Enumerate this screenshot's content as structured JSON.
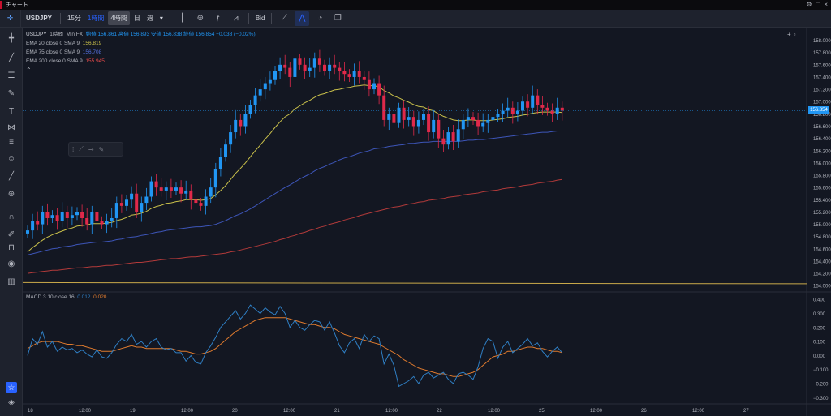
{
  "window": {
    "title": "チャート",
    "controls": [
      "⚙",
      "□",
      "×"
    ]
  },
  "toolbar": {
    "symbol": "USDJPY",
    "timeframes": [
      {
        "label": "15分",
        "state": "normal"
      },
      {
        "label": "1時間",
        "state": "active"
      },
      {
        "label": "4時間",
        "state": "selected"
      },
      {
        "label": "日",
        "state": "normal"
      },
      {
        "label": "週",
        "state": "normal"
      },
      {
        "label": "▾",
        "state": "normal"
      }
    ],
    "price_type": "Bid"
  },
  "legend": {
    "symbol": "USDJPY",
    "interval": "1時間",
    "source": "Min FX",
    "ohlc": "始値 156.861  高値 156.893  安値 156.838  終値 156.854  −0.038 (−0.02%)",
    "indicators": [
      {
        "label": "EMA 20 close 0 SMA 9",
        "value": "156.819",
        "color": "#c9c04a"
      },
      {
        "label": "EMA 75 close 0 SMA 9",
        "value": "156.708",
        "color": "#5471e0"
      },
      {
        "label": "EMA 200 close 0 SMA 9",
        "value": "155.945",
        "color": "#e64a4a"
      }
    ]
  },
  "macd": {
    "label": "MACD 3 10 close 16",
    "macd_value": "0.012",
    "signal_value": "0.020",
    "macd_color": "#2f7fc4",
    "signal_color": "#e07b2e"
  },
  "current_price": "156.854",
  "price_axis": [
    "158.000",
    "157.800",
    "157.600",
    "157.400",
    "157.200",
    "157.000",
    "156.800",
    "156.600",
    "156.400",
    "156.200",
    "156.000",
    "155.800",
    "155.600",
    "155.400",
    "155.200",
    "155.000",
    "154.800",
    "154.600",
    "154.400",
    "154.200",
    "154.000"
  ],
  "macd_axis": [
    "0.400",
    "0.300",
    "0.200",
    "0.100",
    "0.000",
    "−0.100",
    "−0.200",
    "−0.300"
  ],
  "time_axis": [
    "18",
    "12:00",
    "19",
    "12:00",
    "20",
    "12:00",
    "21",
    "12:00",
    "22",
    "12:00",
    "25",
    "12:00",
    "26",
    "12:00",
    "27"
  ],
  "colors": {
    "bg": "#131722",
    "up": "#2196f3",
    "down": "#e0294a",
    "ema20": "#c9c04a",
    "ema75": "#3d55b8",
    "ema200": "#b23a3a",
    "hline": "#c9a94a"
  },
  "icons": {
    "left_tools": [
      "crosshair-icon",
      "trendline-icon",
      "fib-icon",
      "brush-icon",
      "text-icon",
      "pattern-icon",
      "forecast-icon",
      "emoji-icon",
      "ruler-icon",
      "zoom-icon",
      "magnet-icon",
      "lock-draw-icon",
      "lock-icon",
      "eye-icon",
      "trash-icon"
    ],
    "bottom_left": [
      "star-icon",
      "layers-icon"
    ]
  },
  "chart_data": {
    "type": "candlestick",
    "price_range": [
      153.95,
      158.1
    ],
    "macd_range": [
      -0.31,
      0.43
    ],
    "candles_close": [
      154.9,
      155.05,
      155.0,
      155.2,
      155.1,
      155.15,
      155.05,
      155.2,
      155.1,
      155.15,
      155.2,
      155.1,
      155.0,
      155.2,
      155.05,
      155.0,
      155.05,
      155.1,
      155.35,
      155.3,
      155.4,
      155.5,
      155.2,
      155.35,
      155.45,
      155.7,
      155.6,
      155.55,
      155.6,
      155.55,
      155.6,
      155.5,
      155.55,
      155.4,
      155.35,
      155.3,
      155.45,
      155.6,
      155.9,
      156.1,
      156.3,
      156.5,
      156.7,
      156.6,
      156.8,
      156.95,
      157.1,
      157.2,
      157.3,
      157.35,
      157.5,
      157.6,
      157.55,
      157.4,
      157.7,
      157.6,
      157.5,
      157.55,
      157.7,
      157.6,
      157.5,
      157.6,
      157.55,
      157.5,
      157.45,
      157.4,
      157.5,
      157.4,
      157.35,
      157.2,
      157.3,
      157.1,
      156.7,
      156.8,
      156.65,
      156.9,
      156.7,
      156.75,
      156.6,
      156.7,
      156.8,
      156.5,
      156.7,
      156.4,
      156.3,
      156.5,
      156.35,
      156.55,
      156.7,
      156.75,
      156.7,
      156.6,
      156.65,
      156.7,
      156.75,
      156.8,
      156.85,
      156.9,
      156.8,
      156.85,
      157.0,
      156.9,
      157.1,
      156.95,
      156.9,
      156.85,
      156.8,
      156.9,
      156.85
    ],
    "ema20": [
      154.55,
      154.62,
      154.68,
      154.74,
      154.79,
      154.83,
      154.86,
      154.89,
      154.92,
      154.94,
      154.97,
      154.98,
      154.99,
      155.01,
      155.01,
      155.01,
      155.02,
      155.03,
      155.06,
      155.08,
      155.11,
      155.15,
      155.16,
      155.18,
      155.21,
      155.26,
      155.29,
      155.31,
      155.34,
      155.35,
      155.37,
      155.38,
      155.4,
      155.4,
      155.4,
      155.39,
      155.4,
      155.42,
      155.48,
      155.55,
      155.63,
      155.73,
      155.83,
      155.91,
      156.0,
      156.1,
      156.2,
      156.29,
      156.39,
      156.48,
      156.58,
      156.67,
      156.75,
      156.8,
      156.88,
      156.93,
      156.98,
      157.02,
      157.07,
      157.11,
      157.13,
      157.16,
      157.19,
      157.2,
      157.22,
      157.23,
      157.25,
      157.26,
      157.27,
      157.26,
      157.26,
      157.24,
      157.18,
      157.14,
      157.09,
      157.06,
      157.02,
      156.99,
      156.95,
      156.92,
      156.91,
      156.87,
      156.85,
      156.8,
      156.76,
      156.73,
      156.7,
      156.69,
      156.69,
      156.7,
      156.7,
      156.69,
      156.69,
      156.69,
      156.7,
      156.71,
      156.72,
      156.74,
      156.75,
      156.76,
      156.78,
      156.79,
      156.81,
      156.82,
      156.83,
      156.83,
      156.83,
      156.83,
      156.82
    ],
    "ema75": [
      154.5,
      154.52,
      154.54,
      154.56,
      154.58,
      154.6,
      154.61,
      154.63,
      154.64,
      154.65,
      154.67,
      154.68,
      154.69,
      154.7,
      154.71,
      154.71,
      154.72,
      154.73,
      154.75,
      154.76,
      154.78,
      154.79,
      154.8,
      154.82,
      154.83,
      154.85,
      154.87,
      154.88,
      154.9,
      154.91,
      154.92,
      154.93,
      154.94,
      154.95,
      154.96,
      154.96,
      154.97,
      154.98,
      155.0,
      155.03,
      155.06,
      155.1,
      155.14,
      155.17,
      155.21,
      155.25,
      155.3,
      155.35,
      155.4,
      155.45,
      155.5,
      155.55,
      155.6,
      155.64,
      155.69,
      155.74,
      155.78,
      155.82,
      155.87,
      155.91,
      155.94,
      155.98,
      156.01,
      156.05,
      156.08,
      156.1,
      156.13,
      156.16,
      156.18,
      156.2,
      156.23,
      156.24,
      156.25,
      156.27,
      156.28,
      156.29,
      156.3,
      156.32,
      156.32,
      156.33,
      156.34,
      156.34,
      156.35,
      156.35,
      156.35,
      156.35,
      156.35,
      156.35,
      156.36,
      156.37,
      156.37,
      156.38,
      156.38,
      156.39,
      156.4,
      156.41,
      156.42,
      156.43,
      156.44,
      156.45,
      156.46,
      156.47,
      156.48,
      156.49,
      156.5,
      156.5,
      156.51,
      156.52,
      156.52
    ],
    "ema200": [
      154.2,
      154.21,
      154.22,
      154.23,
      154.24,
      154.25,
      154.25,
      154.26,
      154.27,
      154.28,
      154.29,
      154.29,
      154.3,
      154.31,
      154.31,
      154.32,
      154.33,
      154.33,
      154.34,
      154.35,
      154.36,
      154.37,
      154.38,
      154.38,
      154.39,
      154.4,
      154.41,
      154.42,
      154.43,
      154.44,
      154.44,
      154.45,
      154.46,
      154.47,
      154.47,
      154.48,
      154.49,
      154.5,
      154.51,
      154.52,
      154.53,
      154.55,
      154.56,
      154.58,
      154.6,
      154.62,
      154.64,
      154.66,
      154.68,
      154.7,
      154.72,
      154.75,
      154.77,
      154.8,
      154.82,
      154.85,
      154.87,
      154.9,
      154.92,
      154.95,
      154.97,
      155.0,
      155.02,
      155.04,
      155.07,
      155.09,
      155.11,
      155.14,
      155.16,
      155.18,
      155.2,
      155.22,
      155.24,
      155.26,
      155.28,
      155.29,
      155.31,
      155.33,
      155.34,
      155.36,
      155.37,
      155.39,
      155.4,
      155.41,
      155.42,
      155.44,
      155.45,
      155.46,
      155.48,
      155.49,
      155.5,
      155.51,
      155.53,
      155.54,
      155.55,
      155.56,
      155.58,
      155.59,
      155.6,
      155.61,
      155.63,
      155.64,
      155.65,
      155.67,
      155.68,
      155.69,
      155.7,
      155.72,
      155.73
    ],
    "hline": 154.05,
    "macd_line": [
      0.0,
      0.12,
      0.08,
      0.17,
      0.06,
      0.1,
      0.03,
      0.06,
      0.04,
      0.05,
      0.02,
      0.04,
      0.01,
      -0.01,
      0.04,
      -0.01,
      -0.02,
      0.02,
      0.08,
      0.12,
      0.1,
      0.15,
      0.08,
      0.1,
      0.06,
      0.1,
      0.12,
      0.06,
      0.04,
      0.05,
      0.02,
      0.02,
      -0.04,
      0.0,
      -0.05,
      -0.06,
      0.02,
      0.07,
      0.13,
      0.2,
      0.24,
      0.28,
      0.32,
      0.26,
      0.3,
      0.36,
      0.33,
      0.3,
      0.34,
      0.31,
      0.29,
      0.35,
      0.3,
      0.2,
      0.25,
      0.2,
      0.18,
      0.22,
      0.25,
      0.24,
      0.18,
      0.24,
      0.16,
      0.07,
      0.02,
      0.09,
      0.12,
      0.05,
      0.15,
      0.1,
      0.14,
      0.12,
      -0.06,
      0.01,
      -0.07,
      -0.22,
      -0.2,
      -0.18,
      -0.15,
      -0.2,
      -0.14,
      -0.12,
      -0.16,
      -0.14,
      -0.12,
      -0.17,
      -0.2,
      -0.13,
      -0.12,
      -0.14,
      -0.17,
      -0.08,
      0.05,
      0.12,
      0.1,
      -0.02,
      0.06,
      0.1,
      0.02,
      0.05,
      0.08,
      0.12,
      0.07,
      0.09,
      0.03,
      -0.01,
      0.03,
      0.06,
      0.02
    ],
    "signal_line": [
      0.05,
      0.07,
      0.09,
      0.1,
      0.1,
      0.1,
      0.1,
      0.09,
      0.08,
      0.08,
      0.07,
      0.07,
      0.06,
      0.05,
      0.04,
      0.03,
      0.03,
      0.03,
      0.04,
      0.05,
      0.06,
      0.07,
      0.06,
      0.06,
      0.05,
      0.05,
      0.05,
      0.05,
      0.05,
      0.05,
      0.04,
      0.03,
      0.03,
      0.02,
      0.01,
      0.01,
      0.02,
      0.03,
      0.05,
      0.08,
      0.11,
      0.14,
      0.17,
      0.19,
      0.21,
      0.23,
      0.25,
      0.26,
      0.27,
      0.27,
      0.27,
      0.27,
      0.27,
      0.26,
      0.25,
      0.24,
      0.23,
      0.22,
      0.22,
      0.21,
      0.2,
      0.2,
      0.19,
      0.17,
      0.15,
      0.14,
      0.13,
      0.12,
      0.11,
      0.1,
      0.09,
      0.08,
      0.06,
      0.04,
      0.02,
      0.0,
      -0.03,
      -0.05,
      -0.07,
      -0.09,
      -0.1,
      -0.11,
      -0.12,
      -0.13,
      -0.13,
      -0.14,
      -0.15,
      -0.15,
      -0.14,
      -0.13,
      -0.12,
      -0.1,
      -0.07,
      -0.04,
      -0.01,
      0.0,
      0.01,
      0.03,
      0.03,
      0.04,
      0.05,
      0.06,
      0.06,
      0.05,
      0.05,
      0.04,
      0.03,
      0.03,
      0.02
    ]
  }
}
